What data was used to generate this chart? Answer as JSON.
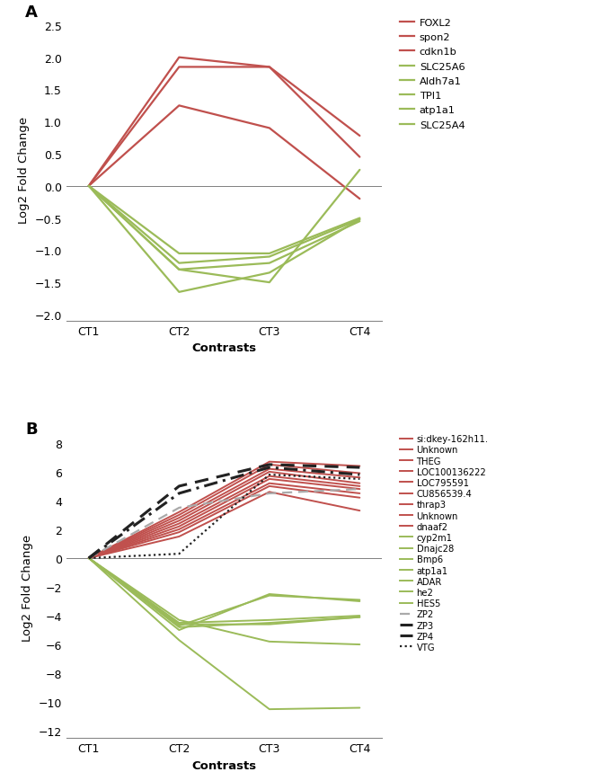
{
  "panel_A": {
    "x": [
      0,
      1,
      2,
      3
    ],
    "xtick_labels": [
      "CT1",
      "CT2",
      "CT3",
      "CT4"
    ],
    "xlabel": "Contrasts",
    "ylabel": "Log2 Fold Change",
    "ylim": [
      -2.1,
      2.6
    ],
    "yticks": [
      -2.0,
      -1.5,
      -1.0,
      -0.5,
      0.0,
      0.5,
      1.0,
      1.5,
      2.0,
      2.5
    ],
    "lines": [
      {
        "label": "FOXL2",
        "color": "#c0504d",
        "values": [
          0.0,
          2.0,
          1.85,
          0.78
        ],
        "lw": 1.6
      },
      {
        "label": "spon2",
        "color": "#c0504d",
        "values": [
          0.0,
          1.85,
          1.85,
          0.45
        ],
        "lw": 1.6
      },
      {
        "label": "cdkn1b",
        "color": "#c0504d",
        "values": [
          0.0,
          1.25,
          0.9,
          -0.2
        ],
        "lw": 1.6
      },
      {
        "label": "SLC25A6",
        "color": "#9bbb59",
        "values": [
          0.0,
          -1.05,
          -1.05,
          -0.5
        ],
        "lw": 1.6
      },
      {
        "label": "Aldh7a1",
        "color": "#9bbb59",
        "values": [
          0.0,
          -1.2,
          -1.1,
          -0.52
        ],
        "lw": 1.6
      },
      {
        "label": "TPI1",
        "color": "#9bbb59",
        "values": [
          0.0,
          -1.3,
          -1.2,
          -0.55
        ],
        "lw": 1.6
      },
      {
        "label": "atp1a1",
        "color": "#9bbb59",
        "values": [
          0.0,
          -1.3,
          -1.5,
          0.25
        ],
        "lw": 1.6
      },
      {
        "label": "SLC25A4",
        "color": "#9bbb59",
        "values": [
          0.0,
          -1.65,
          -1.35,
          -0.52
        ],
        "lw": 1.6
      }
    ],
    "legend": [
      {
        "label": "FOXL2",
        "color": "#c0504d",
        "ls": "solid",
        "lw": 1.6
      },
      {
        "label": "spon2",
        "color": "#c0504d",
        "ls": "solid",
        "lw": 1.6
      },
      {
        "label": "cdkn1b",
        "color": "#c0504d",
        "ls": "solid",
        "lw": 1.6
      },
      {
        "label": "SLC25A6",
        "color": "#9bbb59",
        "ls": "solid",
        "lw": 1.6
      },
      {
        "label": "Aldh7a1",
        "color": "#9bbb59",
        "ls": "solid",
        "lw": 1.6
      },
      {
        "label": "TPI1",
        "color": "#9bbb59",
        "ls": "solid",
        "lw": 1.6
      },
      {
        "label": "atp1a1",
        "color": "#9bbb59",
        "ls": "solid",
        "lw": 1.6
      },
      {
        "label": "SLC25A4",
        "color": "#9bbb59",
        "ls": "solid",
        "lw": 1.6
      }
    ]
  },
  "panel_B": {
    "x": [
      0,
      1,
      2,
      3
    ],
    "xtick_labels": [
      "CT1",
      "CT2",
      "CT3",
      "CT4"
    ],
    "xlabel": "Contrasts",
    "ylabel": "Log2 Fold Change",
    "ylim": [
      -12.5,
      8.5
    ],
    "yticks": [
      -12,
      -10,
      -8,
      -6,
      -4,
      -2,
      0,
      2,
      4,
      6,
      8
    ],
    "lines": [
      {
        "label": "si:dkey-162h11.",
        "color": "#c0504d",
        "values": [
          0.0,
          3.2,
          6.7,
          6.4
        ],
        "lw": 1.4,
        "ls": "solid"
      },
      {
        "label": "Unknown",
        "color": "#c0504d",
        "values": [
          0.0,
          3.0,
          6.5,
          5.9
        ],
        "lw": 1.4,
        "ls": "solid"
      },
      {
        "label": "THEG",
        "color": "#c0504d",
        "values": [
          0.0,
          2.8,
          6.2,
          5.6
        ],
        "lw": 1.4,
        "ls": "solid"
      },
      {
        "label": "LOC100136222",
        "color": "#c0504d",
        "values": [
          0.0,
          2.6,
          6.0,
          5.2
        ],
        "lw": 1.4,
        "ls": "solid"
      },
      {
        "label": "LOC795591",
        "color": "#c0504d",
        "values": [
          0.0,
          2.4,
          5.7,
          5.0
        ],
        "lw": 1.4,
        "ls": "solid"
      },
      {
        "label": "CU856539.4",
        "color": "#c0504d",
        "values": [
          0.0,
          2.2,
          5.5,
          4.8
        ],
        "lw": 1.4,
        "ls": "solid"
      },
      {
        "label": "thrap3",
        "color": "#c0504d",
        "values": [
          0.0,
          2.0,
          5.2,
          4.5
        ],
        "lw": 1.4,
        "ls": "solid"
      },
      {
        "label": "Unknown",
        "color": "#c0504d",
        "values": [
          0.0,
          1.8,
          5.0,
          4.2
        ],
        "lw": 1.4,
        "ls": "solid"
      },
      {
        "label": "dnaaf2",
        "color": "#c0504d",
        "values": [
          0.0,
          1.5,
          4.6,
          3.3
        ],
        "lw": 1.4,
        "ls": "solid"
      },
      {
        "label": "cyp2m1",
        "color": "#9bbb59",
        "values": [
          0.0,
          -4.7,
          -2.6,
          -2.9
        ],
        "lw": 1.4,
        "ls": "solid"
      },
      {
        "label": "Dnajc28",
        "color": "#9bbb59",
        "values": [
          0.0,
          -4.5,
          -4.3,
          -4.0
        ],
        "lw": 1.4,
        "ls": "solid"
      },
      {
        "label": "Bmp6",
        "color": "#9bbb59",
        "values": [
          0.0,
          -4.8,
          -4.5,
          -4.1
        ],
        "lw": 1.4,
        "ls": "solid"
      },
      {
        "label": "atp1a1",
        "color": "#9bbb59",
        "values": [
          0.0,
          -4.6,
          -4.6,
          -4.1
        ],
        "lw": 1.4,
        "ls": "solid"
      },
      {
        "label": "ADAR",
        "color": "#9bbb59",
        "values": [
          0.0,
          -4.3,
          -5.8,
          -6.0
        ],
        "lw": 1.4,
        "ls": "solid"
      },
      {
        "label": "he2",
        "color": "#9bbb59",
        "values": [
          0.0,
          -5.7,
          -10.5,
          -10.4
        ],
        "lw": 1.4,
        "ls": "solid"
      },
      {
        "label": "HES5",
        "color": "#9bbb59",
        "values": [
          0.0,
          -5.0,
          -2.5,
          -3.0
        ],
        "lw": 1.4,
        "ls": "solid"
      },
      {
        "label": "ZP2",
        "color": "#aaaaaa",
        "values": [
          0.0,
          3.5,
          4.5,
          4.8
        ],
        "lw": 1.6,
        "ls": "dashed"
      },
      {
        "label": "ZP3",
        "color": "#222222",
        "values": [
          0.0,
          5.0,
          6.5,
          6.3
        ],
        "lw": 2.2,
        "ls": "dashed"
      },
      {
        "label": "ZP4",
        "color": "#222222",
        "values": [
          0.0,
          4.5,
          6.3,
          5.8
        ],
        "lw": 2.2,
        "ls": "dashdot"
      },
      {
        "label": "VTG",
        "color": "#222222",
        "values": [
          0.0,
          0.3,
          5.8,
          5.5
        ],
        "lw": 1.6,
        "ls": "dotted"
      }
    ],
    "legend": [
      {
        "label": "si:dkey-162h11.",
        "color": "#c0504d",
        "ls": "solid",
        "lw": 1.4
      },
      {
        "label": "Unknown",
        "color": "#c0504d",
        "ls": "solid",
        "lw": 1.4
      },
      {
        "label": "THEG",
        "color": "#c0504d",
        "ls": "solid",
        "lw": 1.4
      },
      {
        "label": "LOC100136222",
        "color": "#c0504d",
        "ls": "solid",
        "lw": 1.4
      },
      {
        "label": "LOC795591",
        "color": "#c0504d",
        "ls": "solid",
        "lw": 1.4
      },
      {
        "label": "CU856539.4",
        "color": "#c0504d",
        "ls": "solid",
        "lw": 1.4
      },
      {
        "label": "thrap3",
        "color": "#c0504d",
        "ls": "solid",
        "lw": 1.4
      },
      {
        "label": "Unknown",
        "color": "#c0504d",
        "ls": "solid",
        "lw": 1.4
      },
      {
        "label": "dnaaf2",
        "color": "#c0504d",
        "ls": "solid",
        "lw": 1.4
      },
      {
        "label": "cyp2m1",
        "color": "#9bbb59",
        "ls": "solid",
        "lw": 1.4
      },
      {
        "label": "Dnajc28",
        "color": "#9bbb59",
        "ls": "solid",
        "lw": 1.4
      },
      {
        "label": "Bmp6",
        "color": "#9bbb59",
        "ls": "solid",
        "lw": 1.4
      },
      {
        "label": "atp1a1",
        "color": "#9bbb59",
        "ls": "solid",
        "lw": 1.4
      },
      {
        "label": "ADAR",
        "color": "#9bbb59",
        "ls": "solid",
        "lw": 1.4
      },
      {
        "label": "he2",
        "color": "#9bbb59",
        "ls": "solid",
        "lw": 1.4
      },
      {
        "label": "HES5",
        "color": "#9bbb59",
        "ls": "solid",
        "lw": 1.4
      },
      {
        "label": "ZP2",
        "color": "#aaaaaa",
        "ls": "dashed",
        "lw": 1.6
      },
      {
        "label": "ZP3",
        "color": "#222222",
        "ls": "dashed",
        "lw": 2.2
      },
      {
        "label": "ZP4",
        "color": "#222222",
        "ls": "dashdot",
        "lw": 2.2
      },
      {
        "label": "VTG",
        "color": "#222222",
        "ls": "dotted",
        "lw": 1.6
      }
    ]
  },
  "fig_width": 6.7,
  "fig_height": 8.7,
  "dpi": 100
}
